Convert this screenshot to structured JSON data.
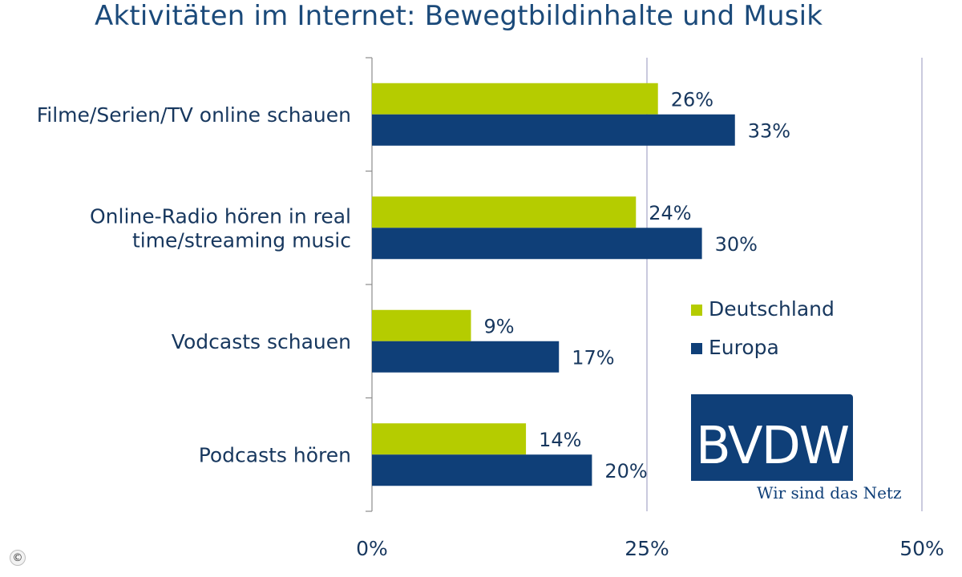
{
  "title": "Aktivitäten im Internet: Bewegtbildinhalte und Musik",
  "logo": {
    "name": "BVDW",
    "slogan": "Wir sind das Netz"
  },
  "copyright_symbol": "©",
  "colors": {
    "deutschland": "#b5cc00",
    "europa": "#0f3f78",
    "text": "#17375e",
    "grid": "#a6a6c8"
  },
  "chart_data": {
    "type": "bar",
    "orientation": "horizontal",
    "title": "Aktivitäten im Internet: Bewegtbildinhalte und Musik",
    "categories": [
      [
        "Filme/Serien/TV online schauen"
      ],
      [
        "Online-Radio hören in real",
        "time/streaming music"
      ],
      [
        "Vodcasts schauen"
      ],
      [
        "Podcasts hören"
      ]
    ],
    "series": [
      {
        "name": "Deutschland",
        "color": "#b5cc00",
        "values": [
          26,
          24,
          9,
          14
        ]
      },
      {
        "name": "Europa",
        "color": "#0f3f78",
        "values": [
          33,
          30,
          17,
          20
        ]
      }
    ],
    "xlim": [
      0,
      50
    ],
    "xticks": [
      0,
      25,
      50
    ],
    "tick_suffix": "%",
    "gridlines": true,
    "legend_position": "right"
  }
}
